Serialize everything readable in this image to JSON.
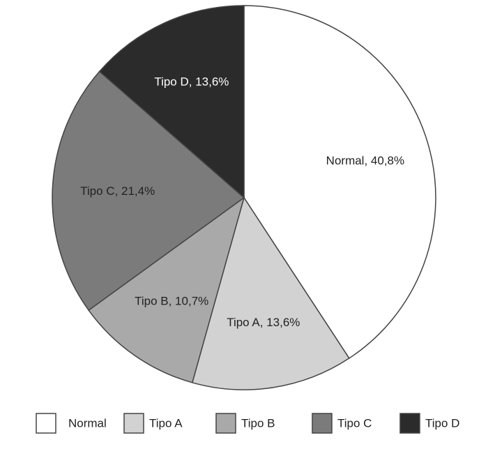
{
  "chart_data": {
    "type": "pie",
    "categories": [
      "Normal",
      "Tipo A",
      "Tipo B",
      "Tipo C",
      "Tipo D"
    ],
    "values": [
      40.8,
      13.6,
      10.7,
      21.4,
      13.6
    ],
    "value_labels": [
      "Normal, 40,8%",
      "Tipo A, 13,6%",
      "Tipo B, 10,7%",
      "Tipo C, 21,4%",
      "Tipo D, 13,6%"
    ],
    "colors": [
      "#ffffff",
      "#d2d2d2",
      "#a9a9a9",
      "#7b7b7b",
      "#2b2b2b"
    ],
    "legend": "bottom"
  }
}
